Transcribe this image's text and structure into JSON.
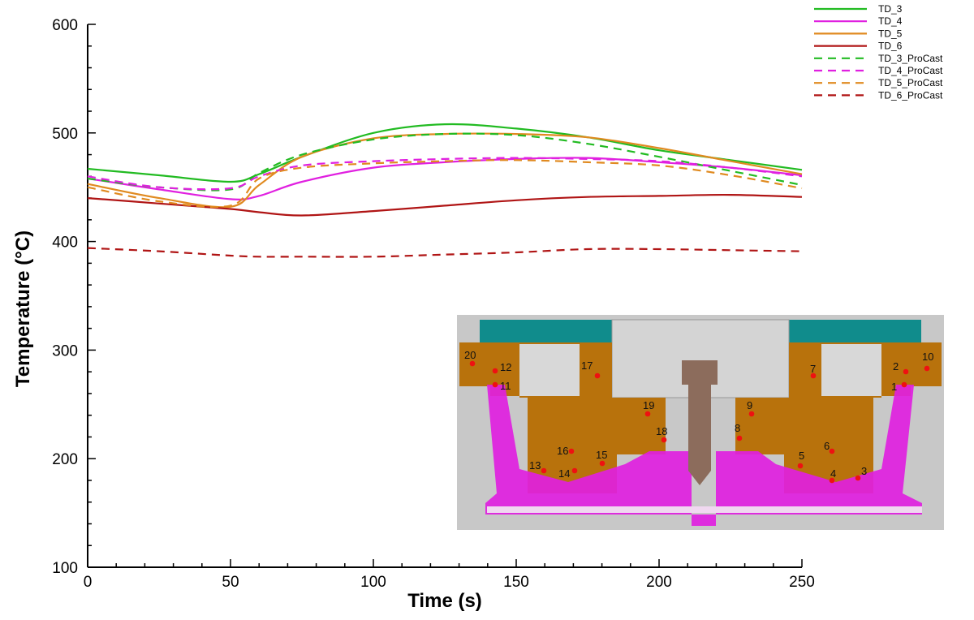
{
  "chart_data": {
    "type": "line",
    "title": "",
    "xlabel": "Time (s)",
    "ylabel": "Temperature (°C)",
    "xlim": [
      0,
      250
    ],
    "ylim": [
      100,
      600
    ],
    "xticks": [
      0,
      50,
      100,
      150,
      200,
      250
    ],
    "yticks": [
      100,
      200,
      300,
      400,
      500,
      600
    ],
    "grid": false,
    "legend_position": "top-right",
    "series": [
      {
        "name": "TD_3",
        "color": "#22bb22",
        "style": "solid",
        "x": [
          0,
          25,
          50,
          60,
          75,
          100,
          125,
          150,
          175,
          200,
          225,
          250
        ],
        "y": [
          467,
          461,
          455,
          462,
          478,
          500,
          508,
          504,
          496,
          484,
          475,
          466
        ]
      },
      {
        "name": "TD_4",
        "color": "#e020e0",
        "style": "solid",
        "x": [
          0,
          25,
          50,
          60,
          75,
          100,
          125,
          150,
          175,
          200,
          225,
          250
        ],
        "y": [
          458,
          448,
          439,
          442,
          455,
          468,
          473,
          476,
          477,
          473,
          468,
          461
        ]
      },
      {
        "name": "TD_5",
        "color": "#e08a20",
        "style": "solid",
        "x": [
          0,
          25,
          50,
          60,
          75,
          100,
          125,
          150,
          175,
          200,
          225,
          250
        ],
        "y": [
          453,
          440,
          432,
          452,
          478,
          495,
          499,
          499,
          496,
          486,
          474,
          462
        ]
      },
      {
        "name": "TD_6",
        "color": "#b01515",
        "style": "solid",
        "x": [
          0,
          25,
          50,
          60,
          75,
          100,
          125,
          150,
          175,
          200,
          225,
          250
        ],
        "y": [
          440,
          435,
          430,
          427,
          424,
          428,
          433,
          438,
          441,
          442,
          443,
          441
        ]
      },
      {
        "name": "TD_3_ProCast",
        "color": "#22bb22",
        "style": "dashed",
        "x": [
          0,
          25,
          50,
          60,
          75,
          100,
          125,
          150,
          175,
          200,
          225,
          250
        ],
        "y": [
          458,
          450,
          448,
          463,
          480,
          494,
          499,
          498,
          490,
          478,
          465,
          452
        ]
      },
      {
        "name": "TD_4_ProCast",
        "color": "#e020e0",
        "style": "dashed",
        "x": [
          0,
          25,
          50,
          60,
          75,
          100,
          125,
          150,
          175,
          200,
          225,
          250
        ],
        "y": [
          460,
          450,
          449,
          460,
          470,
          474,
          476,
          477,
          476,
          474,
          468,
          460
        ]
      },
      {
        "name": "TD_5_ProCast",
        "color": "#e08a20",
        "style": "dashed",
        "x": [
          0,
          25,
          50,
          60,
          75,
          100,
          125,
          150,
          175,
          200,
          225,
          250
        ],
        "y": [
          450,
          437,
          433,
          458,
          468,
          472,
          474,
          475,
          473,
          470,
          461,
          449
        ]
      },
      {
        "name": "TD_6_ProCast",
        "color": "#b01515",
        "style": "dashed",
        "x": [
          0,
          25,
          50,
          60,
          75,
          100,
          125,
          150,
          175,
          200,
          225,
          250
        ],
        "y": [
          394,
          391,
          387,
          386,
          386,
          386,
          388,
          390,
          393,
          393,
          392,
          391
        ]
      }
    ]
  },
  "inset": {
    "colors": {
      "background": "#c8c8c8",
      "teal": "#108c8c",
      "bronze": "#b8720c",
      "magenta": "#e020e0",
      "grey": "#d0d0d0",
      "stem": "#8c6c5c",
      "marker": "#ee1111"
    },
    "labels": [
      "1",
      "2",
      "3",
      "4",
      "5",
      "6",
      "7",
      "8",
      "9",
      "10",
      "11",
      "12",
      "13",
      "14",
      "15",
      "16",
      "17",
      "18",
      "19",
      "20"
    ]
  }
}
